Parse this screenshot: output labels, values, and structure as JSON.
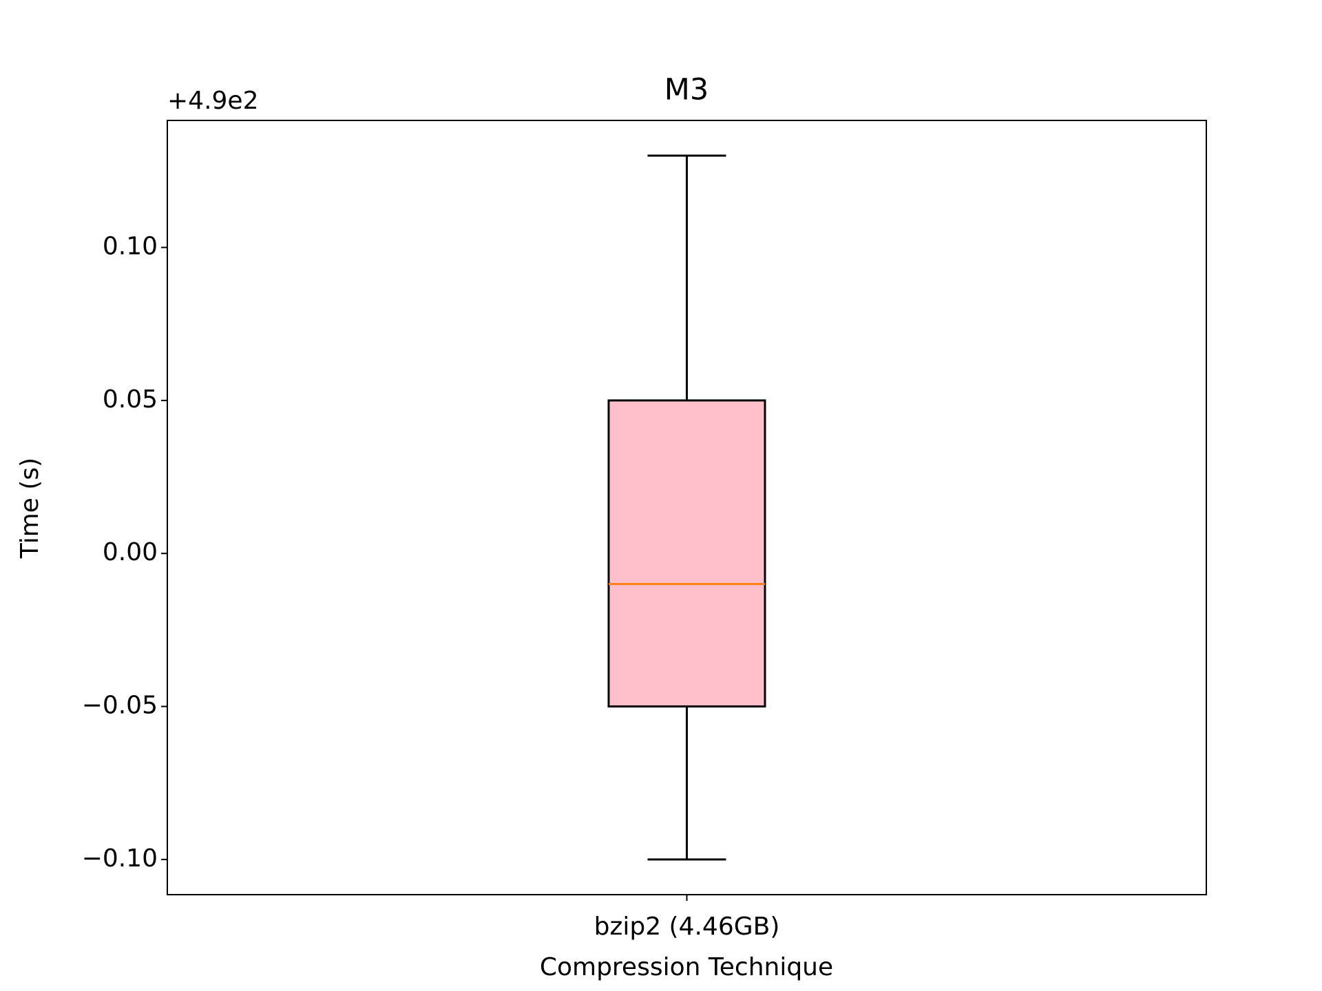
{
  "chart_data": {
    "type": "box",
    "title": "M3",
    "offset_text": "+4.9e2",
    "xlabel": "Compression Technique",
    "ylabel": "Time (s)",
    "categories": [
      "bzip2 (4.46GB)"
    ],
    "boxes": [
      {
        "whislo": -0.1,
        "q1": -0.05,
        "med": -0.01,
        "q3": 0.05,
        "whishi": 0.13
      }
    ],
    "box_color": "#ffc0cb",
    "median_color": "#ff7f0e",
    "ylim": [
      -0.1115,
      0.1415
    ],
    "yticks": [
      {
        "value": -0.1,
        "label": "−0.10"
      },
      {
        "value": -0.05,
        "label": "−0.05"
      },
      {
        "value": 0.0,
        "label": "0.00"
      },
      {
        "value": 0.05,
        "label": "0.05"
      },
      {
        "value": 0.1,
        "label": "0.10"
      }
    ],
    "grid": false
  }
}
